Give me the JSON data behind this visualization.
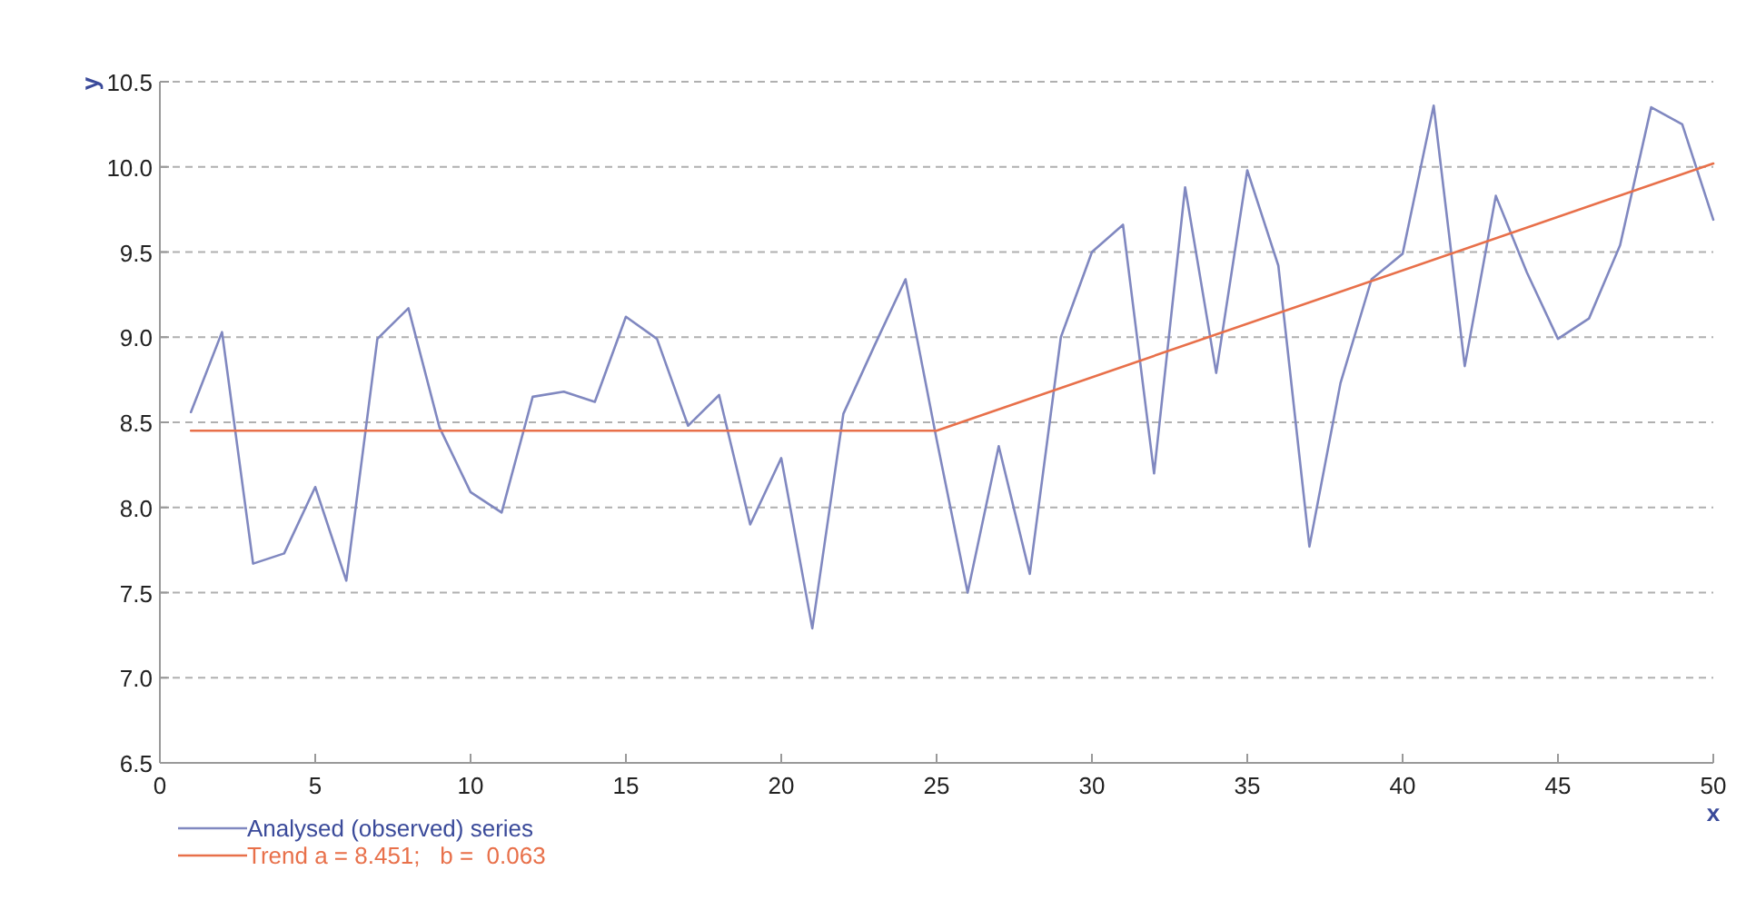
{
  "chart_data": {
    "type": "line",
    "xlabel": "x",
    "ylabel": "y",
    "xlim": [
      0,
      50
    ],
    "ylim": [
      6.5,
      10.5
    ],
    "xticks": [
      0,
      5,
      10,
      15,
      20,
      25,
      30,
      35,
      40,
      45,
      50
    ],
    "yticks": [
      {
        "value": 6.5,
        "label": "6.5"
      },
      {
        "value": 7,
        "label": "7.0"
      },
      {
        "value": 7.5,
        "label": "7.5"
      },
      {
        "value": 8,
        "label": "8.0"
      },
      {
        "value": 8.5,
        "label": "8.5"
      },
      {
        "value": 9,
        "label": "9.0"
      },
      {
        "value": 9.5,
        "label": "9.5"
      },
      {
        "value": 10,
        "label": "10.0"
      },
      {
        "value": 10.5,
        "label": "10.5"
      }
    ],
    "grid": "y",
    "legend": "bottom left",
    "line_style": "solid",
    "series": [
      {
        "name": "Analysed (observed) series",
        "color": "#8088c0",
        "x": [
          1,
          2,
          3,
          4,
          5,
          6,
          7,
          8,
          9,
          10,
          11,
          12,
          13,
          14,
          15,
          16,
          17,
          18,
          19,
          20,
          21,
          22,
          23,
          24,
          25,
          26,
          27,
          28,
          29,
          30,
          31,
          32,
          33,
          34,
          35,
          36,
          37,
          38,
          39,
          40,
          41,
          42,
          43,
          44,
          45,
          46,
          47,
          48,
          49,
          50
        ],
        "values": [
          8.56,
          9.03,
          7.67,
          7.73,
          8.12,
          7.57,
          8.99,
          9.17,
          8.47,
          8.09,
          7.97,
          8.65,
          8.68,
          8.62,
          9.12,
          8.99,
          8.48,
          8.66,
          7.9,
          8.29,
          7.29,
          8.55,
          8.95,
          9.34,
          8.4,
          7.5,
          8.36,
          7.61,
          9.0,
          9.5,
          9.66,
          8.2,
          9.88,
          8.79,
          9.98,
          9.42,
          7.77,
          8.73,
          9.34,
          9.49,
          10.36,
          8.83,
          9.83,
          9.38,
          8.99,
          9.11,
          9.54,
          10.35,
          10.25,
          9.69
        ]
      },
      {
        "name": "Trend a = 8.451;   b =  0.063",
        "color": "#e8704a",
        "x": [
          1,
          25,
          50
        ],
        "values": [
          8.451,
          8.451,
          10.02
        ]
      }
    ]
  }
}
